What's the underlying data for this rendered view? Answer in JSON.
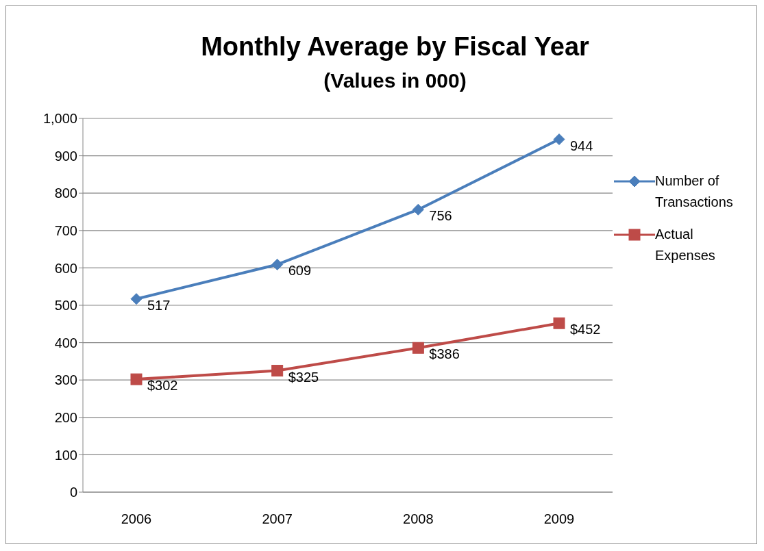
{
  "chart_data": {
    "type": "line",
    "title": "Monthly Average by Fiscal Year",
    "subtitle": "(Values in 000)",
    "categories": [
      "2006",
      "2007",
      "2008",
      "2009"
    ],
    "series": [
      {
        "name": "Number of Transactions",
        "color": "#4a7ebb",
        "marker": "diamond",
        "values": [
          517,
          609,
          756,
          944
        ],
        "value_labels": [
          "517",
          "609",
          "756",
          "944"
        ]
      },
      {
        "name": "Actual Expenses",
        "color": "#be4b48",
        "marker": "square",
        "values": [
          302,
          325,
          386,
          452
        ],
        "value_labels": [
          "$302",
          "$325",
          "$386",
          "$452"
        ]
      }
    ],
    "ylim": [
      0,
      1000
    ],
    "yticks": [
      0,
      100,
      200,
      300,
      400,
      500,
      600,
      700,
      800,
      900,
      {
        "value": 1000,
        "label": "1,000"
      }
    ],
    "grid": "y",
    "legend": "right",
    "line_style": "solid"
  }
}
